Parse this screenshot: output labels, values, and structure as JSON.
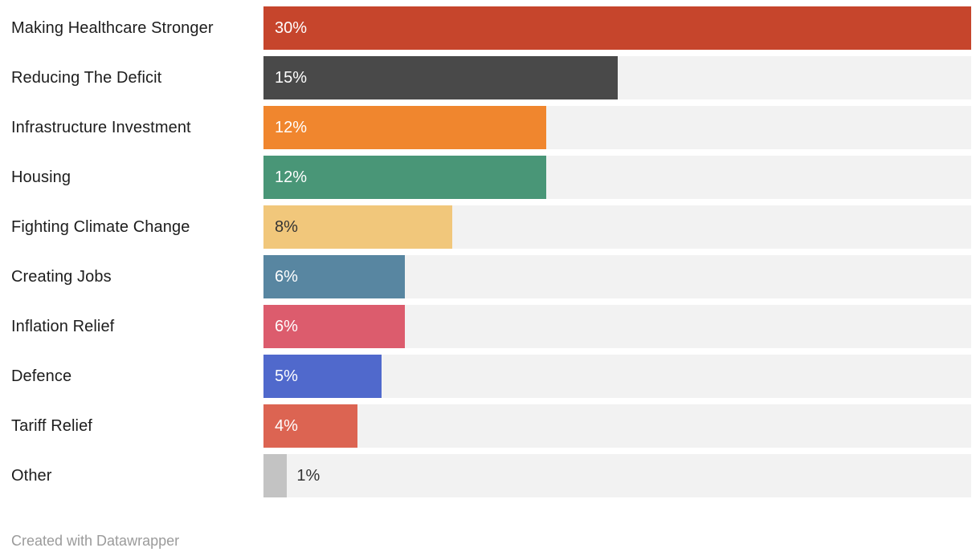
{
  "chart_data": {
    "type": "bar",
    "orientation": "horizontal",
    "title": "",
    "xlabel": "",
    "ylabel": "",
    "xlim": [
      0,
      30
    ],
    "unit": "%",
    "grid": false,
    "legend": null,
    "categories": [
      "Making Healthcare Stronger",
      "Reducing The Deficit",
      "Infrastructure Investment",
      "Housing",
      "Fighting Climate Change",
      "Creating Jobs",
      "Inflation Relief",
      "Defence",
      "Tariff Relief",
      "Other"
    ],
    "values": [
      30,
      15,
      12,
      12,
      8,
      6,
      6,
      5,
      4,
      1
    ],
    "rows": [
      {
        "label": "Making Healthcare Stronger",
        "value": 30,
        "value_label": "30%",
        "bar_color": "#c6452c",
        "value_label_color": "#ffffff",
        "value_label_inside": true
      },
      {
        "label": "Reducing The Deficit",
        "value": 15,
        "value_label": "15%",
        "bar_color": "#494949",
        "value_label_color": "#ffffff",
        "value_label_inside": true
      },
      {
        "label": "Infrastructure Investment",
        "value": 12,
        "value_label": "12%",
        "bar_color": "#f0862e",
        "value_label_color": "#ffffff",
        "value_label_inside": true
      },
      {
        "label": "Housing",
        "value": 12,
        "value_label": "12%",
        "bar_color": "#499677",
        "value_label_color": "#ffffff",
        "value_label_inside": true
      },
      {
        "label": "Fighting Climate Change",
        "value": 8,
        "value_label": "8%",
        "bar_color": "#f1c77b",
        "value_label_color": "#333333",
        "value_label_inside": true
      },
      {
        "label": "Creating Jobs",
        "value": 6,
        "value_label": "6%",
        "bar_color": "#5886a1",
        "value_label_color": "#ffffff",
        "value_label_inside": true
      },
      {
        "label": "Inflation Relief",
        "value": 6,
        "value_label": "6%",
        "bar_color": "#dc5c6d",
        "value_label_color": "#ffffff",
        "value_label_inside": true
      },
      {
        "label": "Defence",
        "value": 5,
        "value_label": "5%",
        "bar_color": "#5069cc",
        "value_label_color": "#ffffff",
        "value_label_inside": true
      },
      {
        "label": "Tariff Relief",
        "value": 4,
        "value_label": "4%",
        "bar_color": "#dc6452",
        "value_label_color": "#ffffff",
        "value_label_inside": true
      },
      {
        "label": "Other",
        "value": 1,
        "value_label": "1%",
        "bar_color": "#c3c3c3",
        "value_label_color": "#333333",
        "value_label_inside": false
      }
    ],
    "track_color": "#f2f2f2",
    "background_color": "#ffffff",
    "category_label_color": "#1d1d1d"
  },
  "footer": {
    "credit": "Created with Datawrapper",
    "color": "#9b9b9b"
  }
}
